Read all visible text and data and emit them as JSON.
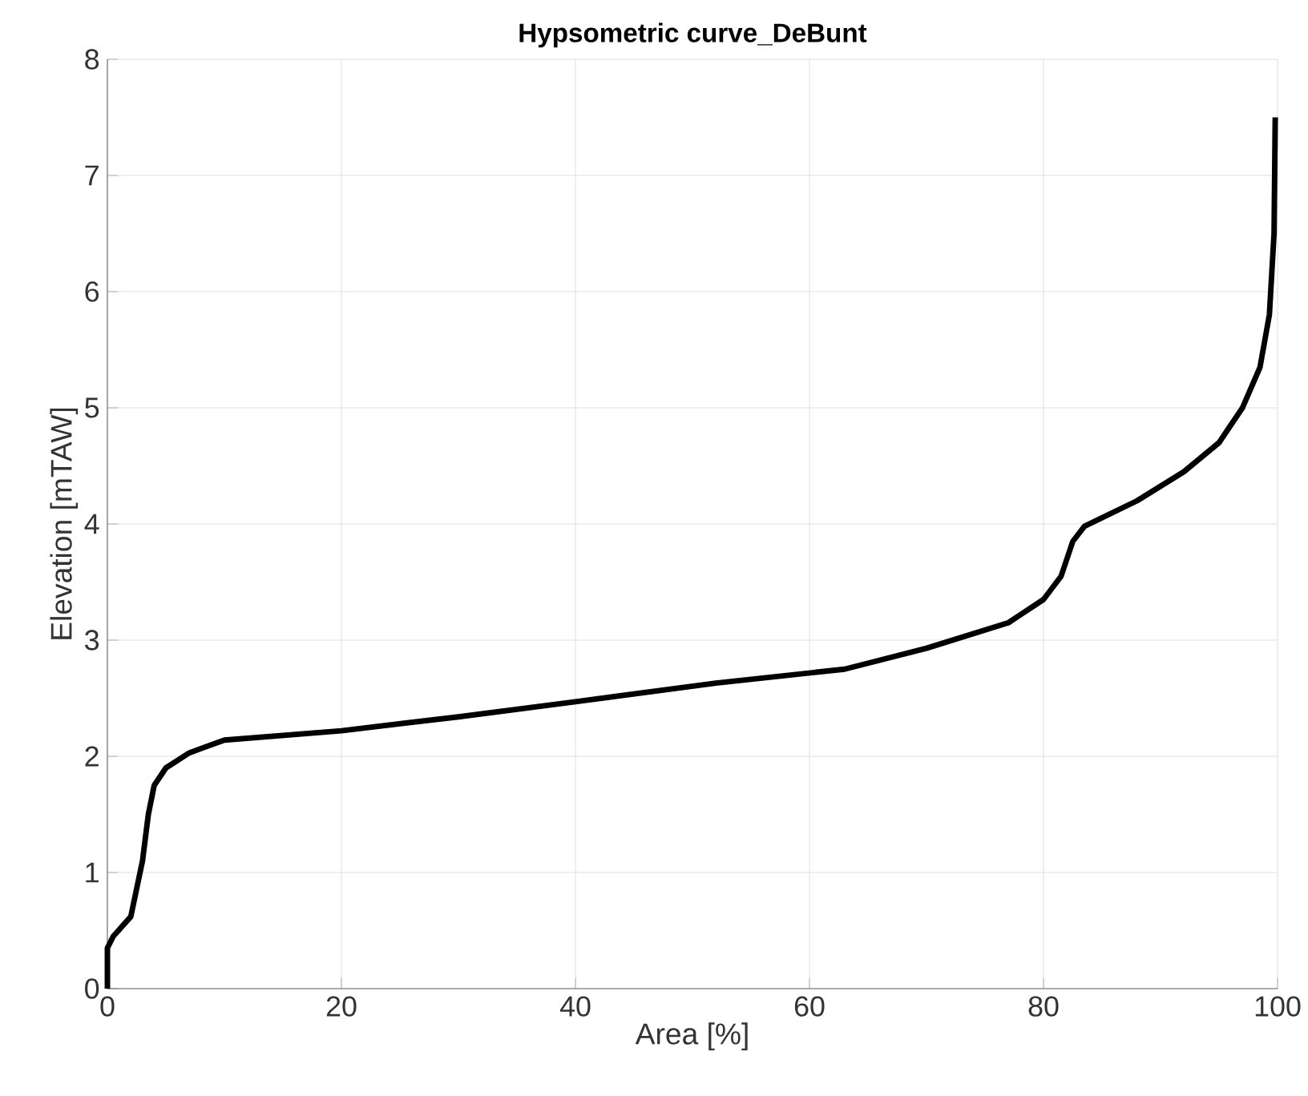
{
  "chart_data": {
    "type": "line",
    "title": "Hypsometric curve_DeBunt",
    "xlabel": "Area [%]",
    "ylabel": "Elevation [mTAW]",
    "x": [
      0,
      0,
      0.5,
      2,
      3,
      3.5,
      4,
      5,
      7,
      10,
      20,
      30,
      40,
      52,
      63,
      70,
      77,
      80,
      81.5,
      82.5,
      83.5,
      88,
      92,
      95,
      97,
      98.5,
      99.3,
      99.7,
      99.8
    ],
    "series": [
      {
        "color": "#000000",
        "values": [
          0,
          0.35,
          0.45,
          0.62,
          1.1,
          1.5,
          1.75,
          1.9,
          2.03,
          2.14,
          2.22,
          2.34,
          2.47,
          2.63,
          2.75,
          2.93,
          3.15,
          3.35,
          3.55,
          3.85,
          3.98,
          4.2,
          4.45,
          4.7,
          5.0,
          5.35,
          5.8,
          6.5,
          7.5
        ]
      }
    ],
    "xlim": [
      0,
      100
    ],
    "ylim": [
      0,
      8
    ],
    "xticks": [
      0,
      20,
      40,
      60,
      80,
      100
    ],
    "yticks": [
      0,
      1,
      2,
      3,
      4,
      5,
      6,
      7,
      8
    ],
    "grid": true
  }
}
